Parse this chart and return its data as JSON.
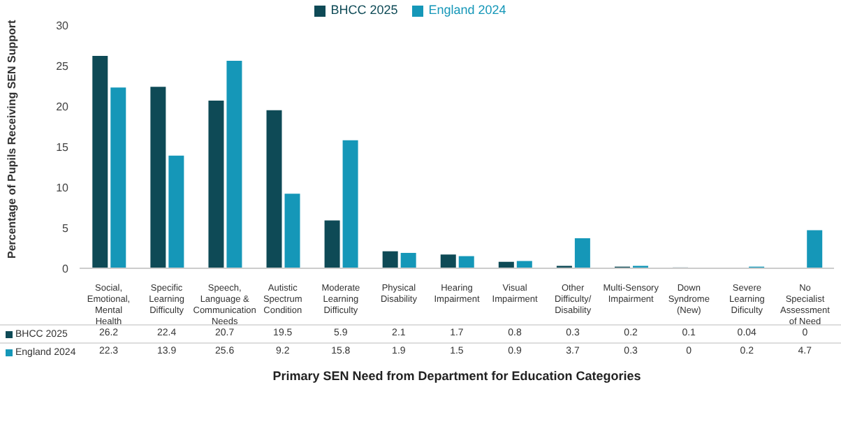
{
  "chart_data": {
    "type": "bar",
    "xlabel": "Primary SEN Need from Department for Education Categories",
    "ylabel": "Percentage of Pupils Receiving SEN Support",
    "categories": [
      "Social, Emotional, Mental Health",
      "Specific Learning Difficulty",
      "Speech, Language & Communication Needs",
      "Autistic Spectrum Condition",
      "Moderate Learning Difficulty",
      "Physical Disability",
      "Hearing Impairment",
      "Visual Impairment",
      "Other Difficulty/Disability",
      "Multi-Sensory Impairment",
      "Down Syndrome (New)",
      "Severe Learning Dificulty",
      "No Specialist Assessment of Need"
    ],
    "series": [
      {
        "name": "BHCC 2025",
        "color": "#0e4a56",
        "values": [
          26.2,
          22.4,
          20.7,
          19.5,
          5.9,
          2.1,
          1.7,
          0.8,
          0.3,
          0.2,
          0.1,
          0.04,
          0
        ]
      },
      {
        "name": "England 2024",
        "color": "#1597b8",
        "values": [
          22.3,
          13.9,
          25.6,
          9.2,
          15.8,
          1.9,
          1.5,
          0.9,
          3.7,
          0.3,
          0,
          0.2,
          4.7
        ]
      }
    ],
    "ylim": [
      0,
      30
    ],
    "yticks": [
      0,
      5,
      10,
      15,
      20,
      25,
      30
    ],
    "legend": "top",
    "grid": false,
    "data_labels": true
  }
}
